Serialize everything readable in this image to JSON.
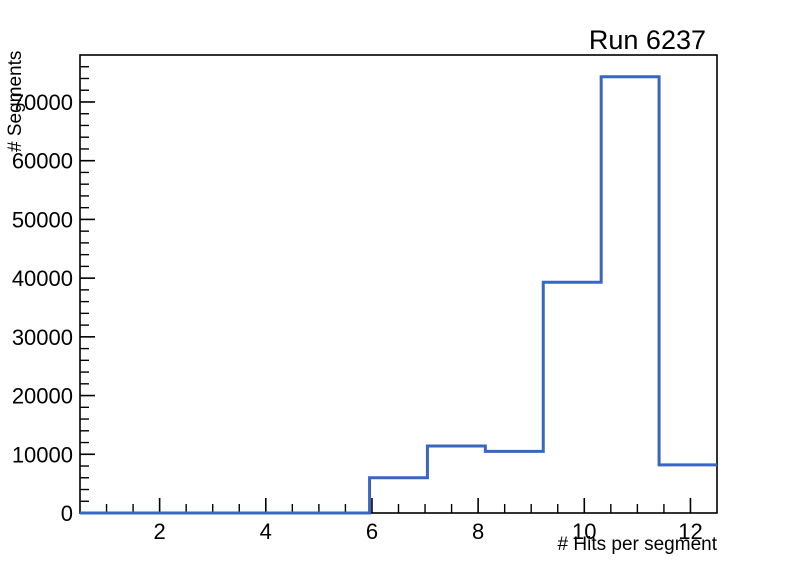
{
  "page": {
    "background": "#ffffff"
  },
  "chart_data": {
    "type": "histogram-step",
    "title": "Run 6237",
    "xlabel": "# Hits per segment",
    "ylabel": "# Segments",
    "xlim": [
      0.5,
      12.5
    ],
    "ylim": [
      0,
      78000
    ],
    "n_bins": 11,
    "bin_edges": [
      0.5,
      1.591,
      2.682,
      3.773,
      4.864,
      5.955,
      7.045,
      8.136,
      9.227,
      10.318,
      11.409,
      12.5
    ],
    "values": [
      0,
      0,
      0,
      0,
      0,
      6000,
      11400,
      10500,
      39300,
      74300,
      8200
    ],
    "x_major_ticks": [
      2,
      4,
      6,
      8,
      10,
      12
    ],
    "x_major_tick_labels": [
      "2",
      "4",
      "6",
      "8",
      "10",
      "12"
    ],
    "x_minor_step": 0.5,
    "y_major_ticks": [
      0,
      10000,
      20000,
      30000,
      40000,
      50000,
      60000,
      70000
    ],
    "y_major_tick_labels": [
      "0",
      "10000",
      "20000",
      "30000",
      "40000",
      "50000",
      "60000",
      "70000"
    ],
    "y_minor_step": 2000,
    "grid": false,
    "legend": null,
    "line_color": "#3a66c3",
    "line_width": 3,
    "frame_color": "#000000",
    "text_color": "#000000"
  }
}
